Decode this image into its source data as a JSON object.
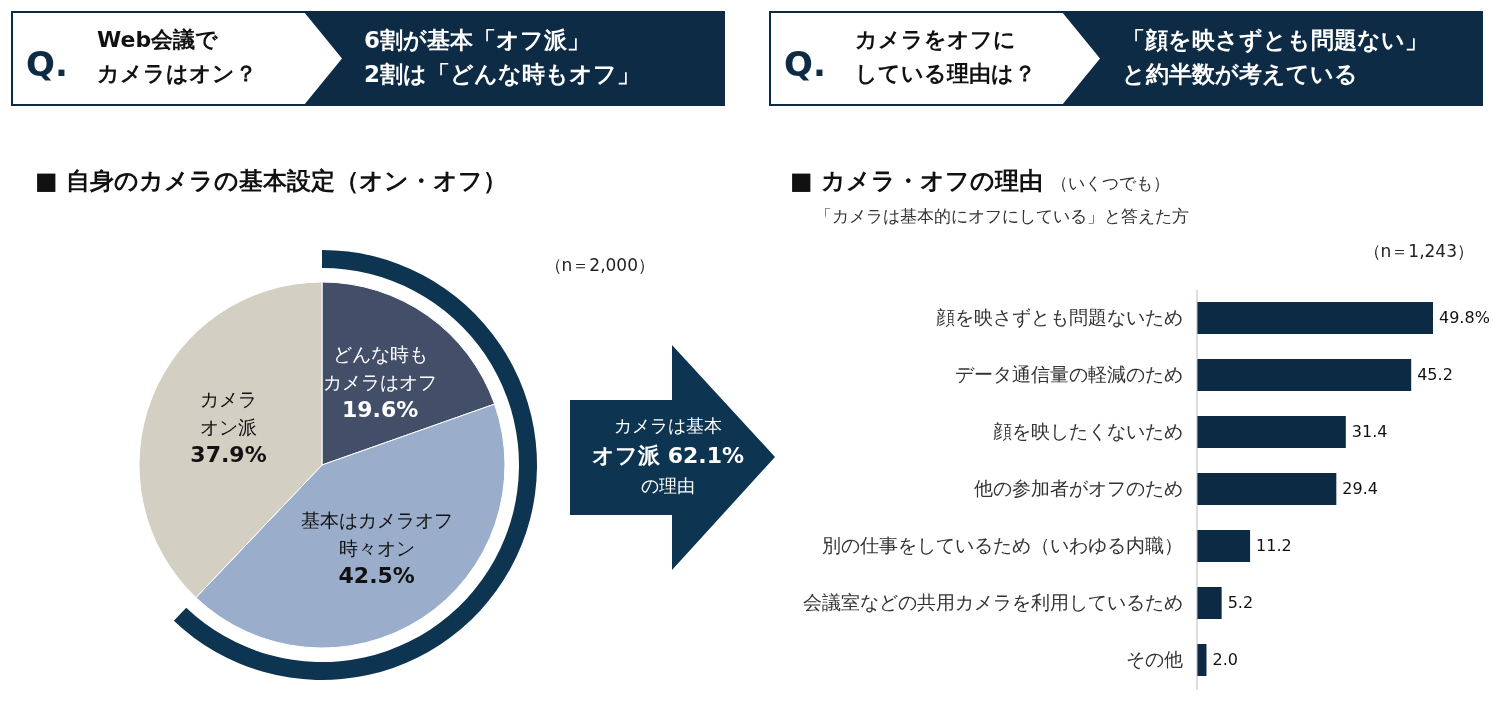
{
  "chart_data": [
    {
      "type": "pie",
      "title": "■ 自身のカメラの基本設定（オン・オフ）",
      "categories": [
        "どんな時もカメラはオフ",
        "基本はカメラオフ時々オン",
        "カメラオン派"
      ],
      "values": [
        19.6,
        42.5,
        37.9
      ],
      "colors": [
        "#434f68",
        "#9aaecb",
        "#d4cfc3"
      ],
      "value_labels": [
        "19.6%",
        "42.5%",
        "37.9%"
      ],
      "annotations": [
        "Q.",
        "Web会議で",
        "カメラはオン？",
        "6割が基本「オフ派」",
        "2割は「どんな時もオフ」",
        "（n＝2,000）",
        "カメラは基本",
        "オフ派 62.1%",
        "の理由"
      ]
    },
    {
      "type": "bar",
      "orientation": "horizontal",
      "title": "■ カメラ・オフの理由",
      "subtitle": "（いくつでも）",
      "categories": [
        "顔を映さずとも問題ないため",
        "データ通信量の軽減のため",
        "顔を映したくないため",
        "他の参加者がオフのため",
        "別の仕事をしているため（いわゆる内職）",
        "会議室などの共用カメラを利用しているため",
        "その他"
      ],
      "values": [
        49.8,
        45.2,
        31.4,
        29.4,
        11.2,
        5.2,
        2.0
      ],
      "color": "#0c2a44",
      "value_labels": [
        "49.8%",
        "45.2",
        "31.4",
        "29.4",
        "11.2",
        "5.2",
        "2.0"
      ],
      "annotations": [
        "Q.",
        "カメラをオフに",
        "している理由は？",
        "「顔を映さずとも問題ない」",
        "と約半数が考えている",
        "「カメラは基本的にオフにしている」と答えた方",
        "（n＝1,243）"
      ]
    }
  ]
}
